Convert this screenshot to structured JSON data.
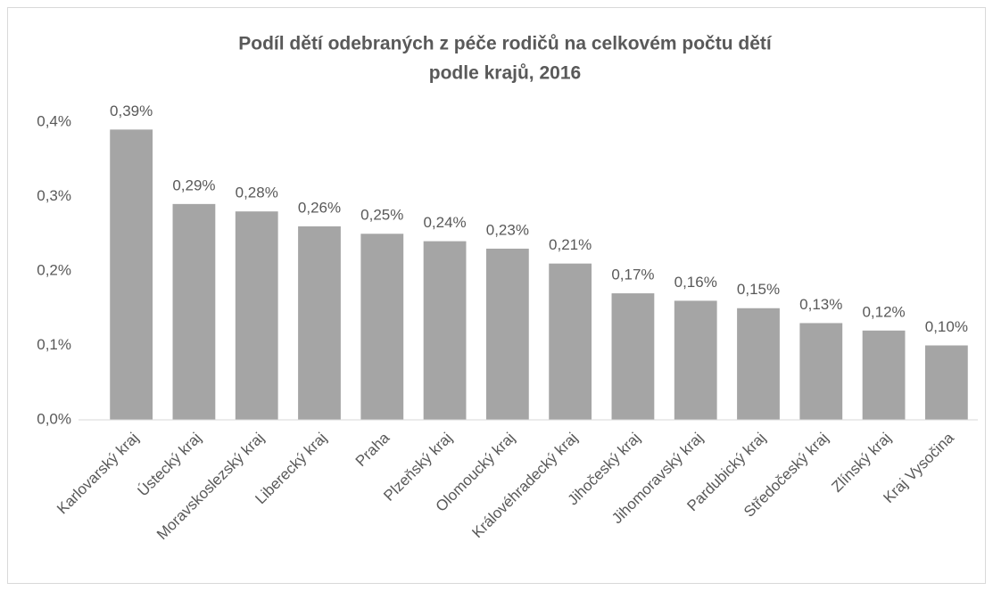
{
  "chart_data": {
    "type": "bar",
    "title": [
      "Podíl dětí odebraných z péče rodičů na celkovém počtu dětí",
      "podle krajů, 2016"
    ],
    "categories": [
      "Karlovarský kraj",
      "Ústecký kraj",
      "Moravskoslezský kraj",
      "Liberecký kraj",
      "Praha",
      "Plzeňský kraj",
      "Olomoucký kraj",
      "Královéhradecký kraj",
      "Jihočeský kraj",
      "Jihomoravský kraj",
      "Pardubický kraj",
      "Středočeský kraj",
      "Zlínský kraj",
      "Kraj Vysočina"
    ],
    "values": [
      0.39,
      0.29,
      0.28,
      0.26,
      0.25,
      0.24,
      0.23,
      0.21,
      0.17,
      0.16,
      0.15,
      0.13,
      0.12,
      0.1
    ],
    "value_labels": [
      "0,39%",
      "0,29%",
      "0,28%",
      "0,26%",
      "0,25%",
      "0,24%",
      "0,23%",
      "0,21%",
      "0,17%",
      "0,16%",
      "0,15%",
      "0,13%",
      "0,12%",
      "0,10%"
    ],
    "color": "#a5a5a5",
    "ylim": [
      0,
      0.4
    ],
    "yticks": [
      {
        "value": 0,
        "label": "0,0%"
      },
      {
        "value": 0.1,
        "label": "0,1%"
      },
      {
        "value": 0.2,
        "label": "0,2%"
      },
      {
        "value": 0.3,
        "label": "0,3%"
      },
      {
        "value": 0.4,
        "label": "0,4%"
      }
    ],
    "grid": false
  }
}
